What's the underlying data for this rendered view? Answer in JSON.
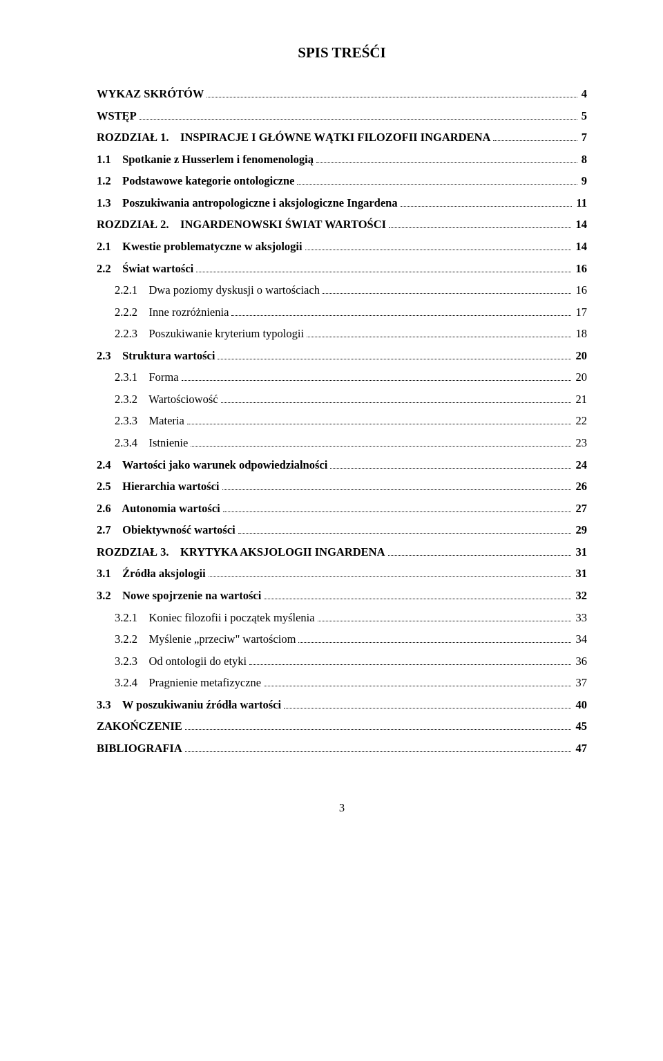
{
  "title": "SPIS TREŚĆI",
  "pageNumber": "3",
  "entries": [
    {
      "level": "lv0",
      "bold": true,
      "label": "WYKAZ SKRÓTÓW",
      "page": "4"
    },
    {
      "level": "lv0",
      "bold": true,
      "label": "WSTĘP",
      "page": "5"
    },
    {
      "level": "lv0",
      "bold": true,
      "label": "ROZDZIAŁ 1.    INSPIRACJE I GŁÓWNE WĄTKI FILOZOFII INGARDENA",
      "page": "7"
    },
    {
      "level": "lv1",
      "bold": true,
      "label": "1.1    Spotkanie z Husserlem i fenomenologią",
      "page": "8"
    },
    {
      "level": "lv1",
      "bold": true,
      "label": "1.2    Podstawowe kategorie ontologiczne",
      "page": "9"
    },
    {
      "level": "lv1",
      "bold": true,
      "label": "1.3    Poszukiwania antropologiczne i aksjologiczne Ingardena",
      "page": "11"
    },
    {
      "level": "lv0",
      "bold": true,
      "label": "ROZDZIAŁ 2.    INGARDENOWSKI ŚWIAT WARTOŚCI",
      "page": "14"
    },
    {
      "level": "lv1",
      "bold": true,
      "label": "2.1    Kwestie problematyczne w aksjologii",
      "page": "14"
    },
    {
      "level": "lv1",
      "bold": true,
      "label": "2.2    Świat wartości",
      "page": "16"
    },
    {
      "level": "lv2",
      "bold": false,
      "label": "2.2.1    Dwa poziomy dyskusji o wartościach",
      "page": "16"
    },
    {
      "level": "lv2",
      "bold": false,
      "label": "2.2.2    Inne rozróżnienia",
      "page": "17"
    },
    {
      "level": "lv2",
      "bold": false,
      "label": "2.2.3    Poszukiwanie kryterium typologii",
      "page": "18"
    },
    {
      "level": "lv1",
      "bold": true,
      "label": "2.3    Struktura wartości",
      "page": "20"
    },
    {
      "level": "lv2",
      "bold": false,
      "label": "2.3.1    Forma",
      "page": "20"
    },
    {
      "level": "lv2",
      "bold": false,
      "label": "2.3.2    Wartościowość",
      "page": "21"
    },
    {
      "level": "lv2",
      "bold": false,
      "label": "2.3.3    Materia",
      "page": "22"
    },
    {
      "level": "lv2",
      "bold": false,
      "label": "2.3.4    Istnienie",
      "page": "23"
    },
    {
      "level": "lv1",
      "bold": true,
      "label": "2.4    Wartości jako warunek odpowiedzialności",
      "page": "24"
    },
    {
      "level": "lv1",
      "bold": true,
      "label": "2.5    Hierarchia wartości",
      "page": "26"
    },
    {
      "level": "lv1",
      "bold": true,
      "label": "2.6    Autonomia wartości",
      "page": "27"
    },
    {
      "level": "lv1",
      "bold": true,
      "label": "2.7    Obiektywność wartości",
      "page": "29"
    },
    {
      "level": "lv0",
      "bold": true,
      "label": "ROZDZIAŁ 3.    KRYTYKA AKSJOLOGII INGARDENA",
      "page": "31"
    },
    {
      "level": "lv1",
      "bold": true,
      "label": "3.1    Źródła aksjologii",
      "page": "31"
    },
    {
      "level": "lv1",
      "bold": true,
      "label": "3.2    Nowe spojrzenie na wartości",
      "page": "32"
    },
    {
      "level": "lv2",
      "bold": false,
      "label": "3.2.1    Koniec filozofii i początek myślenia",
      "page": "33"
    },
    {
      "level": "lv2",
      "bold": false,
      "label": "3.2.2    Myślenie „przeciw\" wartościom",
      "page": "34"
    },
    {
      "level": "lv2",
      "bold": false,
      "label": "3.2.3    Od ontologii do etyki",
      "page": "36"
    },
    {
      "level": "lv2",
      "bold": false,
      "label": "3.2.4    Pragnienie metafizyczne",
      "page": "37"
    },
    {
      "level": "lv1",
      "bold": true,
      "label": "3.3    W poszukiwaniu źródła wartości",
      "page": "40"
    },
    {
      "level": "lv0",
      "bold": true,
      "label": "ZAKOŃCZENIE",
      "page": "45"
    },
    {
      "level": "lv0",
      "bold": true,
      "label": "BIBLIOGRAFIA",
      "page": "47"
    }
  ]
}
